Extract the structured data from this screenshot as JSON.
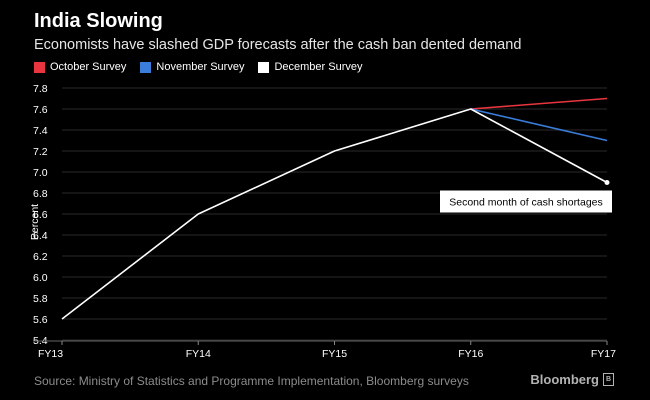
{
  "chart_data": {
    "type": "line",
    "title": "India Slowing",
    "subtitle": "Economists have slashed GDP forecasts after the cash ban dented demand",
    "categories": [
      "FY13",
      "FY14",
      "FY15",
      "FY16",
      "FY17"
    ],
    "ylabel": "Percent",
    "xlabel": "",
    "ylim": [
      5.4,
      7.8
    ],
    "yticks": [
      "5.4",
      "5.6",
      "5.8",
      "6.0",
      "6.2",
      "6.4",
      "6.6",
      "6.8",
      "7.0",
      "7.2",
      "7.4",
      "7.6",
      "7.8"
    ],
    "grid": true,
    "legend_position": "top-left",
    "series": [
      {
        "name": "October Survey",
        "color": "#e8353f",
        "values": [
          null,
          null,
          null,
          7.6,
          7.7
        ]
      },
      {
        "name": "November Survey",
        "color": "#3a7ddb",
        "values": [
          null,
          null,
          null,
          7.6,
          7.3
        ]
      },
      {
        "name": "December Survey",
        "color": "#ffffff",
        "values": [
          5.6,
          6.6,
          7.2,
          7.6,
          6.9
        ]
      }
    ],
    "annotation": {
      "text": "Second month of cash shortages",
      "category": "FY17",
      "value": 6.9
    }
  },
  "source": "Source: Ministry of Statistics and Programme Implementation, Bloomberg surveys",
  "brand": "Bloomberg"
}
